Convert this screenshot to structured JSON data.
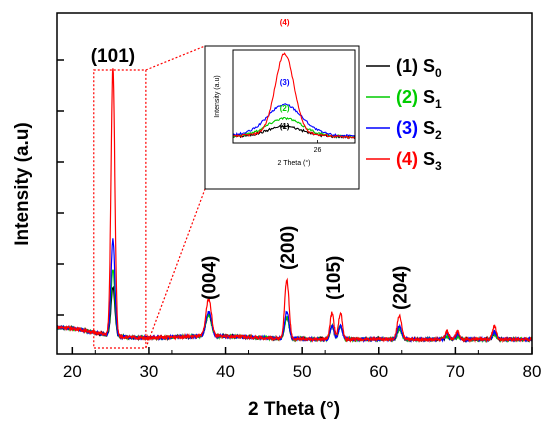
{
  "chart_data": {
    "type": "line",
    "title": "",
    "xlabel": "2 Theta (°)",
    "ylabel": "Intensity (a.u)",
    "xlim": [
      18,
      80
    ],
    "xticks": [
      20,
      30,
      40,
      50,
      60,
      70,
      80
    ],
    "y_tick_labels_shown": false,
    "grid": false,
    "legend_position": "top-right",
    "peak_labels": [
      {
        "text": "(101)",
        "x": 25.3
      },
      {
        "text": "(004)",
        "x": 37.8
      },
      {
        "text": "(200)",
        "x": 48.0
      },
      {
        "text": "(105)",
        "x": 54.0
      },
      {
        "text": "(204)",
        "x": 62.7
      }
    ],
    "series": [
      {
        "name_prefix": "(1)",
        "name_main": "S",
        "name_sub": "0",
        "color": "#000000",
        "peak_height": 0.18
      },
      {
        "name_prefix": "(2)",
        "name_main": "S",
        "name_sub": "1",
        "color": "#00cc00",
        "peak_height": 0.25
      },
      {
        "name_prefix": "(3)",
        "name_main": "S",
        "name_sub": "2",
        "color": "#0000ff",
        "peak_height": 0.36
      },
      {
        "name_prefix": "(4)",
        "name_main": "S",
        "name_sub": "3",
        "color": "#ff0000",
        "peak_height": 1.0
      }
    ],
    "peaks": [
      {
        "x": 25.3,
        "rel": [
          1.0,
          1.0,
          1.0,
          1.0
        ],
        "width": 0.35
      },
      {
        "x": 37.8,
        "rel": [
          0.08,
          0.08,
          0.09,
          0.14
        ],
        "width": 0.5
      },
      {
        "x": 48.0,
        "rel": [
          0.08,
          0.08,
          0.1,
          0.22
        ],
        "width": 0.4
      },
      {
        "x": 53.9,
        "rel": [
          0.05,
          0.05,
          0.05,
          0.1
        ],
        "width": 0.35
      },
      {
        "x": 55.0,
        "rel": [
          0.05,
          0.05,
          0.05,
          0.1
        ],
        "width": 0.35
      },
      {
        "x": 62.7,
        "rel": [
          0.04,
          0.04,
          0.05,
          0.09
        ],
        "width": 0.4
      },
      {
        "x": 68.9,
        "rel": [
          0.01,
          0.01,
          0.02,
          0.03
        ],
        "width": 0.35
      },
      {
        "x": 70.3,
        "rel": [
          0.01,
          0.01,
          0.02,
          0.03
        ],
        "width": 0.35
      },
      {
        "x": 75.1,
        "rel": [
          0.02,
          0.02,
          0.03,
          0.05
        ],
        "width": 0.35
      }
    ],
    "inset": {
      "xlabel": "2 Theta (°)",
      "ylabel": "Intensity (a.u)",
      "xlim": [
        24.2,
        26.8
      ],
      "xticks": [
        26
      ],
      "peak_x": 25.3,
      "tags": [
        "(1)",
        "(2)",
        "(3)",
        "(4)"
      ],
      "heights": [
        0.1,
        0.17,
        0.3,
        0.85
      ]
    }
  }
}
